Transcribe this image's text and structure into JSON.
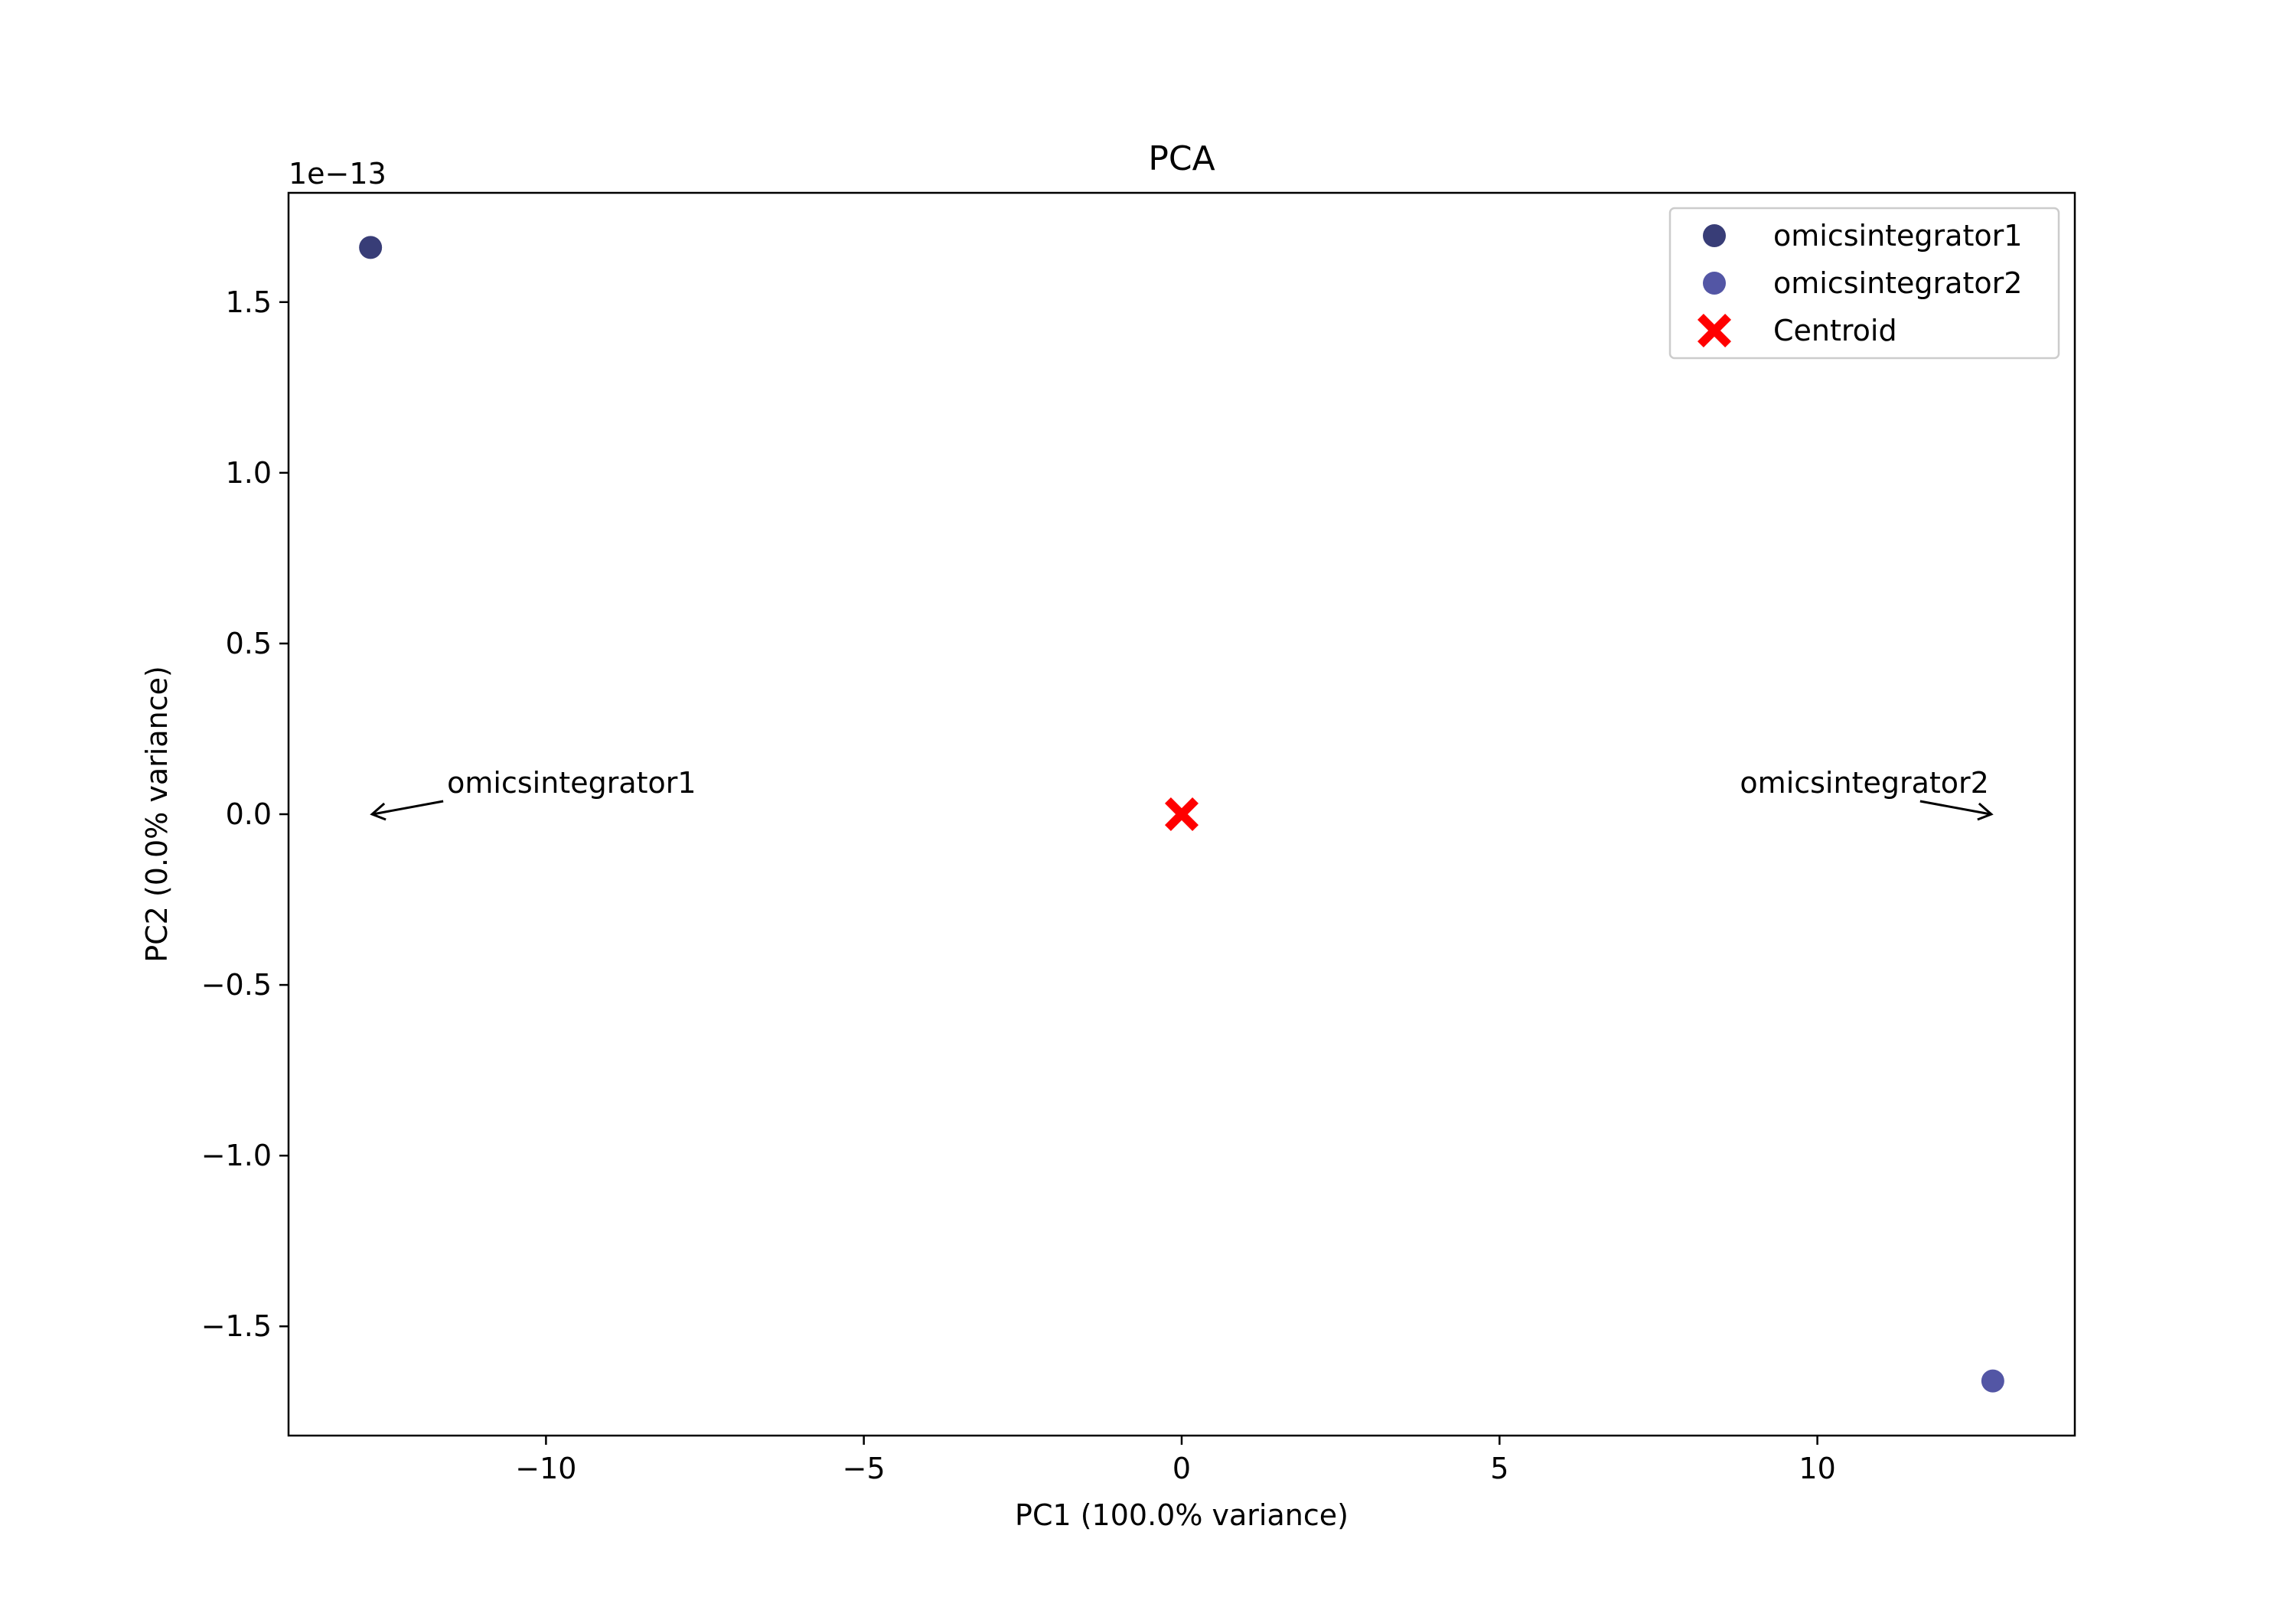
{
  "chart_data": {
    "type": "scatter",
    "title": "PCA",
    "xlabel": "PC1 (100.0% variance)",
    "ylabel": "PC2 (0.0% variance)",
    "y_offset_label": "1e−13",
    "xlim": [
      -14.05,
      14.05
    ],
    "ylim": [
      -1.82,
      1.82
    ],
    "x_ticks": [
      {
        "value": -10,
        "label": "−10"
      },
      {
        "value": -5,
        "label": "−5"
      },
      {
        "value": 0,
        "label": "0"
      },
      {
        "value": 5,
        "label": "5"
      },
      {
        "value": 10,
        "label": "10"
      }
    ],
    "y_ticks": [
      {
        "value": 1.5,
        "label": "1.5"
      },
      {
        "value": 1.0,
        "label": "1.0"
      },
      {
        "value": 0.5,
        "label": "0.5"
      },
      {
        "value": 0.0,
        "label": "0.0"
      },
      {
        "value": -0.5,
        "label": "−0.5"
      },
      {
        "value": -1.0,
        "label": "−1.0"
      },
      {
        "value": -1.5,
        "label": "−1.5"
      }
    ],
    "grid": false,
    "legend_position": "upper right",
    "series": [
      {
        "name": "omicsintegrator1",
        "marker": "circle",
        "color": "#383d77",
        "points": [
          {
            "x": -12.76,
            "y": 1.66
          }
        ]
      },
      {
        "name": "omicsintegrator2",
        "marker": "circle",
        "color": "#5356a5",
        "points": [
          {
            "x": 12.76,
            "y": -1.66
          }
        ]
      },
      {
        "name": "Centroid",
        "marker": "x-filled",
        "color": "#ff0000",
        "points": [
          {
            "x": 0.0,
            "y": 0.0
          }
        ]
      }
    ],
    "annotations": [
      {
        "text": "omicsintegrator1",
        "point": {
          "x": -12.76,
          "y": 0.0
        }
      },
      {
        "text": "omicsintegrator2",
        "point": {
          "x": 12.76,
          "y": 0.0
        }
      }
    ]
  }
}
